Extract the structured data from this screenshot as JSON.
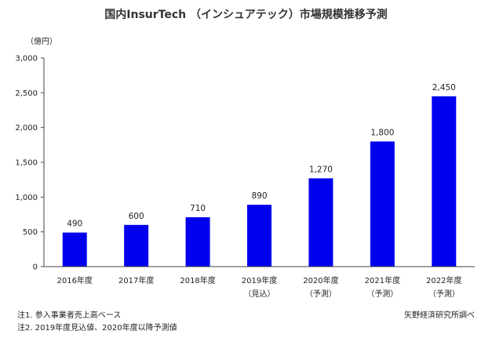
{
  "chart_data": {
    "type": "bar",
    "title": "国内InsurTech （インシュアテック）市場規模推移予測",
    "y_unit": "（億円）",
    "categories": [
      "2016年度",
      "2017年度",
      "2018年度",
      "2019年度",
      "2020年度",
      "2021年度",
      "2022年度"
    ],
    "category_sublabels": [
      "",
      "",
      "",
      "（見込）",
      "（予測）",
      "（予測）",
      "（予測）"
    ],
    "values": [
      490,
      600,
      710,
      890,
      1270,
      1800,
      2450
    ],
    "value_labels": [
      "490",
      "600",
      "710",
      "890",
      "1,270",
      "1,800",
      "2,450"
    ],
    "ylim": [
      0,
      3000
    ],
    "y_ticks": [
      0,
      500,
      1000,
      1500,
      2000,
      2500,
      3000
    ],
    "y_tick_labels": [
      "0",
      "500",
      "1,000",
      "1,500",
      "2,000",
      "2,500",
      "3,000"
    ],
    "bar_color": "#0000ee",
    "grid": false
  },
  "notes": {
    "note_1": "注1. 参入事業者売上高ベース",
    "note_2": "注2. 2019年度見込値、2020年度以降予測値",
    "source": "矢野経済研究所調べ"
  }
}
